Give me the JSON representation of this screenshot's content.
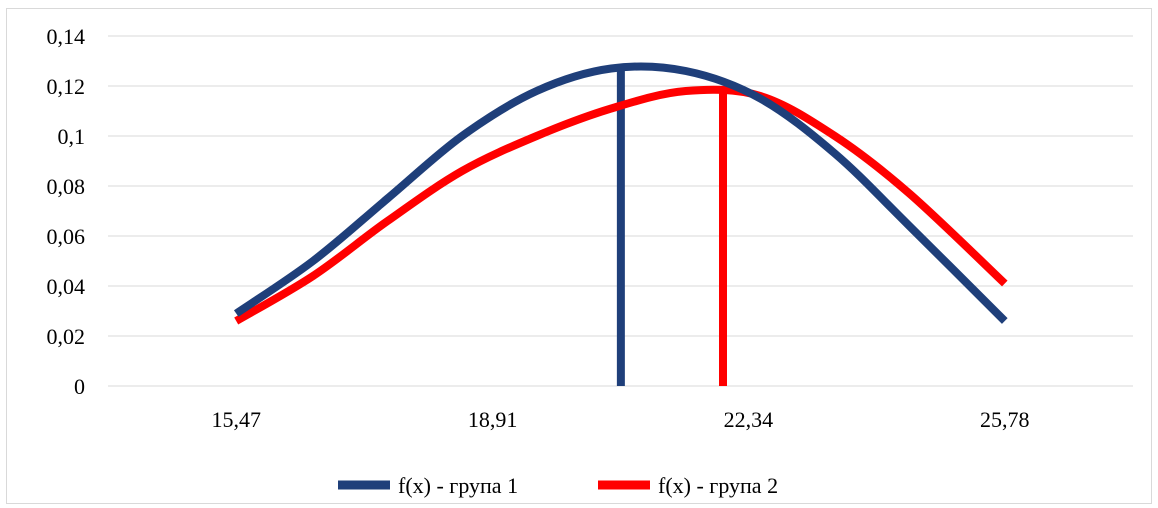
{
  "chart_data": {
    "type": "line",
    "title": "",
    "xlabel": "",
    "ylabel": "",
    "x_ticks": [
      "15,47",
      "18,91",
      "22,34",
      "25,78"
    ],
    "y_ticks": [
      "0",
      "0,02",
      "0,04",
      "0,06",
      "0,08",
      "0,1",
      "0,12",
      "0,14"
    ],
    "xlim": [
      13.75,
      27.5
    ],
    "ylim": [
      0,
      0.14
    ],
    "grid": "horizontal",
    "legend_position": "bottom",
    "series": [
      {
        "name": "f(x) - група 1",
        "color": "#1f3f7a",
        "x": [
          15.47,
          16.5,
          17.5,
          18.5,
          19.5,
          20.5,
          21.5,
          22.5,
          23.5,
          24.5,
          25.78
        ],
        "y": [
          0.029,
          0.05,
          0.075,
          0.1,
          0.118,
          0.127,
          0.126,
          0.115,
          0.093,
          0.064,
          0.026
        ]
      },
      {
        "name": "f(x) - група 2",
        "color": "#ff0000",
        "x": [
          15.47,
          16.5,
          17.5,
          18.5,
          19.5,
          20.5,
          21.5,
          22.5,
          23.5,
          24.5,
          25.78
        ],
        "y": [
          0.026,
          0.044,
          0.066,
          0.086,
          0.1,
          0.111,
          0.118,
          0.116,
          0.1,
          0.077,
          0.041
        ]
      }
    ],
    "vertical_lines": [
      {
        "series": "f(x) - група 1",
        "x": 20.63,
        "y_top": 0.128,
        "color": "#1f3f7a"
      },
      {
        "series": "f(x) - група 2",
        "x": 22.0,
        "y_top": 0.118,
        "color": "#ff0000"
      }
    ]
  }
}
